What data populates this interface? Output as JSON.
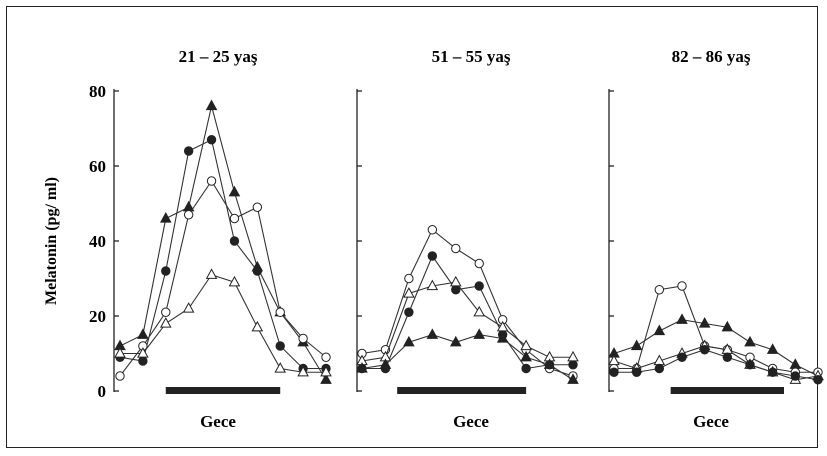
{
  "chart_data": [
    {
      "type": "line",
      "title": "21 – 25 yaş",
      "xlabel": "Gece",
      "ylabel": "Melatonin (pg/ ml)",
      "ylim": [
        0,
        80
      ],
      "yticks": [
        "0",
        "20",
        "40",
        "60",
        "80"
      ],
      "x": [
        1,
        2,
        3,
        4,
        5,
        6,
        7,
        8,
        9,
        10
      ],
      "series": [
        {
          "marker": "filled-triangle",
          "values": [
            12,
            15,
            46,
            49,
            76,
            53,
            33,
            21,
            13,
            3
          ]
        },
        {
          "marker": "filled-circle",
          "values": [
            9,
            8,
            32,
            64,
            67,
            40,
            32,
            12,
            6,
            6
          ]
        },
        {
          "marker": "open-circle",
          "values": [
            4,
            12,
            21,
            47,
            56,
            46,
            49,
            21,
            14,
            9
          ]
        },
        {
          "marker": "open-triangle",
          "values": [
            10,
            10,
            18,
            22,
            31,
            29,
            17,
            6,
            5,
            5
          ]
        }
      ],
      "night_bar": [
        3,
        8
      ]
    },
    {
      "type": "line",
      "title": "51 – 55 yaş",
      "xlabel": "Gece",
      "ylim": [
        0,
        80
      ],
      "x": [
        1,
        2,
        3,
        4,
        5,
        6,
        7,
        8,
        9,
        10
      ],
      "series": [
        {
          "marker": "open-circle",
          "values": [
            10,
            11,
            30,
            43,
            38,
            34,
            19,
            11,
            6,
            4
          ]
        },
        {
          "marker": "filled-circle",
          "values": [
            6,
            6,
            21,
            36,
            27,
            28,
            15,
            6,
            7,
            7
          ]
        },
        {
          "marker": "open-triangle",
          "values": [
            8,
            9,
            26,
            28,
            29,
            21,
            17,
            12,
            9,
            9
          ]
        },
        {
          "marker": "filled-triangle",
          "values": [
            6,
            7,
            13,
            15,
            13,
            15,
            14,
            9,
            7,
            3
          ]
        }
      ],
      "night_bar": [
        2.5,
        8
      ]
    },
    {
      "type": "line",
      "title": "82 – 86 yaş",
      "xlabel": "Gece",
      "ylim": [
        0,
        80
      ],
      "x": [
        1,
        2,
        3,
        4,
        5,
        6,
        7,
        8,
        9,
        10
      ],
      "series": [
        {
          "marker": "filled-triangle",
          "values": [
            10,
            12,
            16,
            19,
            18,
            17,
            13,
            11,
            7,
            4
          ]
        },
        {
          "marker": "open-circle",
          "values": [
            6,
            6,
            27,
            28,
            12,
            11,
            9,
            6,
            5,
            5
          ]
        },
        {
          "marker": "open-triangle",
          "values": [
            8,
            6,
            8,
            10,
            12,
            11,
            7,
            5,
            3,
            4
          ]
        },
        {
          "marker": "filled-circle",
          "values": [
            5,
            5,
            6,
            9,
            11,
            9,
            7,
            5,
            4,
            3
          ]
        }
      ],
      "night_bar": [
        3.5,
        8.5
      ]
    }
  ]
}
